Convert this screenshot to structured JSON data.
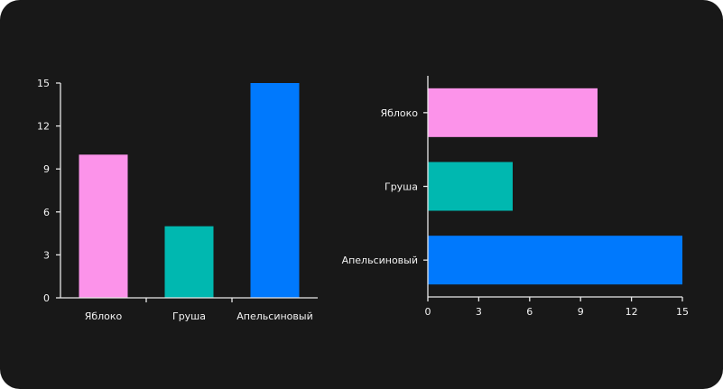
{
  "chart_data": [
    {
      "type": "bar",
      "orientation": "vertical",
      "categories": [
        "Яблоко",
        "Груша",
        "Апельсиновый"
      ],
      "values": [
        10,
        5,
        15
      ],
      "colors": [
        "#fc93ea",
        "#00b8b0",
        "#0079fd"
      ],
      "ylim": [
        0,
        15
      ],
      "yticks": [
        0,
        3,
        6,
        9,
        12,
        15
      ],
      "grid": false
    },
    {
      "type": "bar",
      "orientation": "horizontal",
      "categories": [
        "Яблоко",
        "Груша",
        "Апельсиновый"
      ],
      "values": [
        10,
        5,
        15
      ],
      "colors": [
        "#fc93ea",
        "#00b8b0",
        "#0079fd"
      ],
      "xlim": [
        0,
        15
      ],
      "xticks": [
        0,
        3,
        6,
        9,
        12,
        15
      ],
      "grid": false
    }
  ],
  "theme": {
    "background": "#181818",
    "axis_color": "#e8e8e8",
    "text_color": "#f2f2f2"
  }
}
